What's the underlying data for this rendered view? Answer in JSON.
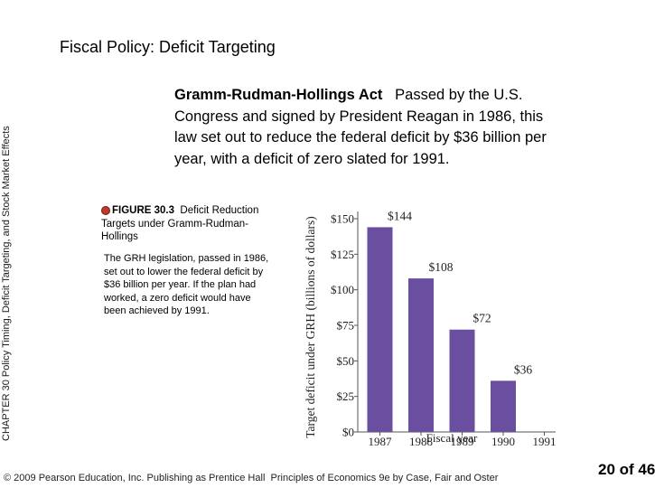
{
  "sidebar": {
    "text": "CHAPTER 30 Policy Timing, Deficit Targeting, and Stock Market Effects"
  },
  "slide": {
    "title": "Fiscal Policy: Deficit Targeting",
    "act_term": "Gramm-Rudman-Hollings Act",
    "act_definition": "Passed by the U.S. Congress and signed by President Reagan in 1986, this law set out to reduce the federal deficit by $36 billion per year, with a deficit of zero slated for 1991."
  },
  "figure": {
    "number": "FIGURE 30.3",
    "caption": "Deficit Reduction Targets under Gramm-Rudman-Hollings",
    "description": "The GRH legislation, passed in 1986, set out to lower the federal deficit by $36 billion per year. If the plan had worked, a zero deficit would have been achieved by 1991."
  },
  "footer": {
    "copyright": "© 2009 Pearson Education, Inc. Publishing as Prentice Hall",
    "book": "Principles of Economics 9e by Case, Fair and Oster"
  },
  "page": {
    "number_text": "20 of 46"
  },
  "chart_data": {
    "type": "bar",
    "categories": [
      "1987",
      "1988",
      "1989",
      "1990",
      "1991"
    ],
    "values": [
      144,
      108,
      72,
      36,
      0
    ],
    "value_labels": [
      "$144",
      "$108",
      "$72",
      "$36",
      ""
    ],
    "ylabel": "Target deficit under GRH (billions of dollars)",
    "xlabel": "Fiscal year",
    "y_ticks": [
      0,
      25,
      50,
      75,
      100,
      125,
      150
    ],
    "y_tick_labels": [
      "$0",
      "$25",
      "$50",
      "$75",
      "$100",
      "$125",
      "$150"
    ],
    "ylim": [
      0,
      150
    ],
    "bar_color": "#6a4fa0",
    "grid": false
  }
}
